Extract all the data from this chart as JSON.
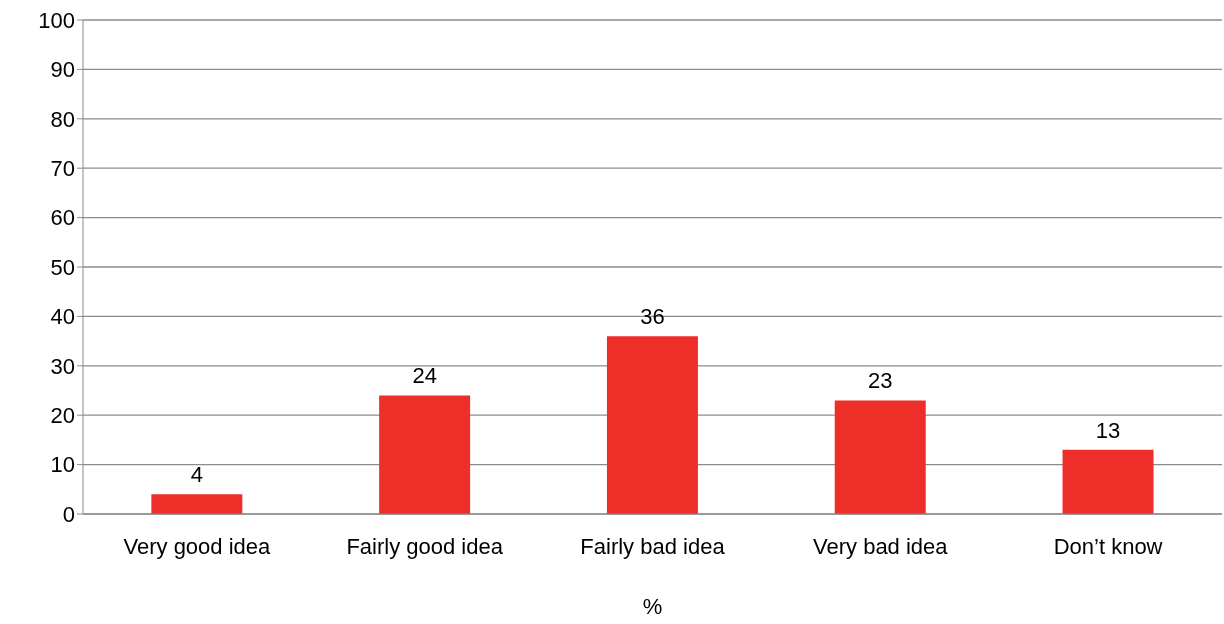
{
  "chart_data": {
    "type": "bar",
    "xlabel": "%",
    "categories": [
      "Very good idea",
      "Fairly good idea",
      "Fairly bad idea",
      "Very bad idea",
      "Don’t know"
    ],
    "values": [
      4,
      24,
      36,
      23,
      13
    ],
    "color": "#ee2e29",
    "ylim": [
      0,
      100
    ],
    "yticks": [
      0,
      10,
      20,
      30,
      40,
      50,
      60,
      70,
      80,
      90,
      100
    ],
    "grid": "y",
    "data_labels": true
  }
}
